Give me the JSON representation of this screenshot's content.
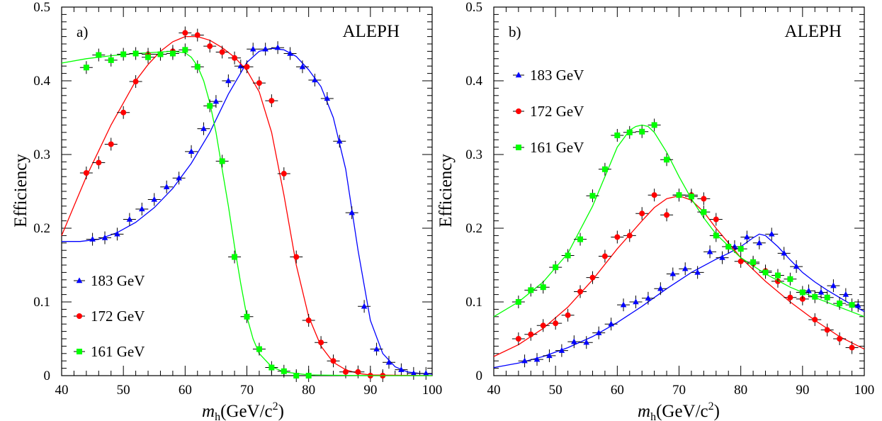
{
  "chart_data": [
    {
      "type": "scatter",
      "panel_label": "a)",
      "experiment": "ALEPH",
      "xlabel_main": "m",
      "xlabel_sub": "h",
      "xlabel_unit": "(GeV/c",
      "xlabel_sup": "2",
      "xlabel_close": ")",
      "ylabel": "Efficiency",
      "xlim": [
        40,
        100
      ],
      "ylim": [
        0,
        0.5
      ],
      "xticks": [
        "40",
        "50",
        "60",
        "70",
        "80",
        "90",
        "100"
      ],
      "yticks": [
        "0",
        "0.1",
        "0.2",
        "0.3",
        "0.4",
        "0.5"
      ],
      "legend_position": "bottom-left",
      "series": [
        {
          "name": "183 GeV",
          "color": "#0000ff",
          "marker": "triangle",
          "x": [
            45,
            47,
            49,
            51,
            53,
            55,
            57,
            59,
            61,
            63,
            65,
            67,
            69,
            71,
            73,
            75,
            77,
            79,
            81,
            83,
            85,
            87,
            89,
            91,
            93,
            95,
            97,
            99
          ],
          "y": [
            0.185,
            0.187,
            0.192,
            0.212,
            0.226,
            0.239,
            0.256,
            0.268,
            0.304,
            0.335,
            0.372,
            0.4,
            0.42,
            0.443,
            0.443,
            0.445,
            0.437,
            0.419,
            0.401,
            0.376,
            0.318,
            0.221,
            0.094,
            0.036,
            0.018,
            0.008,
            0.003,
            0.003
          ],
          "fit_x": [
            40,
            43,
            46,
            49,
            52,
            55,
            58,
            61,
            64,
            67,
            70,
            72,
            74,
            76,
            78,
            80,
            82,
            84,
            86,
            88,
            90,
            92,
            94,
            96,
            98,
            100
          ],
          "fit_y": [
            0.182,
            0.182,
            0.185,
            0.194,
            0.208,
            0.228,
            0.254,
            0.288,
            0.33,
            0.382,
            0.425,
            0.44,
            0.444,
            0.442,
            0.433,
            0.415,
            0.392,
            0.35,
            0.28,
            0.17,
            0.075,
            0.03,
            0.012,
            0.005,
            0.003,
            0.002
          ]
        },
        {
          "name": "172 GeV",
          "color": "#ff0000",
          "marker": "circle",
          "x": [
            44,
            46,
            48,
            50,
            52,
            54,
            56,
            58,
            60,
            62,
            64,
            66,
            68,
            70,
            72,
            74,
            76,
            78,
            80,
            82,
            84,
            86,
            88,
            90,
            92
          ],
          "y": [
            0.275,
            0.289,
            0.314,
            0.357,
            0.399,
            0.436,
            0.436,
            0.44,
            0.465,
            0.462,
            0.447,
            0.439,
            0.431,
            0.419,
            0.397,
            0.373,
            0.274,
            0.161,
            0.075,
            0.045,
            0.02,
            0.005,
            0.005,
            0.0,
            0.0
          ],
          "fit_x": [
            40,
            42,
            44,
            46,
            48,
            50,
            52,
            54,
            56,
            58,
            60,
            62,
            64,
            66,
            68,
            70,
            72,
            74,
            76,
            78,
            80,
            82,
            84,
            86,
            88,
            90,
            100
          ],
          "fit_y": [
            0.19,
            0.23,
            0.27,
            0.305,
            0.34,
            0.37,
            0.4,
            0.422,
            0.44,
            0.453,
            0.46,
            0.46,
            0.455,
            0.445,
            0.432,
            0.414,
            0.385,
            0.33,
            0.245,
            0.15,
            0.08,
            0.04,
            0.018,
            0.008,
            0.003,
            0.001,
            0.0
          ]
        },
        {
          "name": "161 GeV",
          "color": "#00ff00",
          "marker": "square",
          "x": [
            44,
            46,
            48,
            50,
            52,
            54,
            56,
            58,
            60,
            62,
            64,
            66,
            68,
            70,
            72,
            74,
            76,
            78,
            80
          ],
          "y": [
            0.418,
            0.435,
            0.428,
            0.436,
            0.437,
            0.432,
            0.436,
            0.437,
            0.442,
            0.419,
            0.366,
            0.291,
            0.161,
            0.08,
            0.036,
            0.011,
            0.006,
            0.0,
            0.0
          ],
          "fit_x": [
            40,
            44,
            48,
            52,
            56,
            58,
            60,
            61,
            62,
            63,
            64,
            65,
            66,
            67,
            68,
            69,
            70,
            71,
            72,
            74,
            76,
            80,
            90,
            100
          ],
          "fit_y": [
            0.424,
            0.43,
            0.434,
            0.437,
            0.439,
            0.44,
            0.438,
            0.432,
            0.42,
            0.4,
            0.37,
            0.33,
            0.28,
            0.23,
            0.175,
            0.125,
            0.08,
            0.05,
            0.03,
            0.012,
            0.005,
            0.001,
            0.0,
            0.0
          ]
        }
      ]
    },
    {
      "type": "scatter",
      "panel_label": "b)",
      "experiment": "ALEPH",
      "xlabel_main": "m",
      "xlabel_sub": "h",
      "xlabel_unit": "(GeV/c",
      "xlabel_sup": "2",
      "xlabel_close": ")",
      "ylabel": "Efficiency",
      "xlim": [
        40,
        100
      ],
      "ylim": [
        0,
        0.5
      ],
      "xticks": [
        "40",
        "50",
        "60",
        "70",
        "80",
        "90",
        "100"
      ],
      "yticks": [
        "0",
        "0.1",
        "0.2",
        "0.3",
        "0.4",
        "0.5"
      ],
      "legend_position": "top-right",
      "series": [
        {
          "name": "183 GeV",
          "color": "#0000ff",
          "marker": "triangle",
          "x": [
            45,
            47,
            49,
            51,
            53,
            55,
            57,
            59,
            61,
            63,
            65,
            67,
            69,
            71,
            73,
            75,
            77,
            79,
            81,
            83,
            85,
            87,
            89,
            91,
            93,
            95,
            97,
            99
          ],
          "y": [
            0.02,
            0.022,
            0.027,
            0.034,
            0.046,
            0.045,
            0.058,
            0.07,
            0.096,
            0.1,
            0.105,
            0.118,
            0.138,
            0.145,
            0.14,
            0.168,
            0.16,
            0.175,
            0.188,
            0.18,
            0.192,
            0.166,
            0.148,
            0.115,
            0.113,
            0.122,
            0.11,
            0.095
          ],
          "fit_x": [
            40,
            44,
            48,
            52,
            56,
            60,
            64,
            68,
            72,
            76,
            78,
            80,
            82,
            83,
            84,
            86,
            88,
            90,
            92,
            94,
            96,
            98,
            100
          ],
          "fit_y": [
            0.011,
            0.017,
            0.026,
            0.038,
            0.053,
            0.072,
            0.094,
            0.118,
            0.14,
            0.158,
            0.166,
            0.175,
            0.187,
            0.192,
            0.19,
            0.175,
            0.157,
            0.14,
            0.127,
            0.116,
            0.106,
            0.096,
            0.087
          ]
        },
        {
          "name": "172 GeV",
          "color": "#ff0000",
          "marker": "circle",
          "x": [
            44,
            46,
            48,
            50,
            52,
            54,
            56,
            58,
            60,
            62,
            64,
            66,
            68,
            70,
            72,
            74,
            76,
            78,
            80,
            82,
            84,
            86,
            88,
            90,
            92,
            94,
            96,
            98
          ],
          "y": [
            0.05,
            0.056,
            0.068,
            0.071,
            0.082,
            0.114,
            0.133,
            0.162,
            0.188,
            0.19,
            0.22,
            0.245,
            0.218,
            0.245,
            0.245,
            0.24,
            0.212,
            0.175,
            0.155,
            0.152,
            0.142,
            0.128,
            0.106,
            0.104,
            0.076,
            0.062,
            0.05,
            0.038
          ],
          "fit_x": [
            40,
            44,
            48,
            52,
            56,
            60,
            64,
            66,
            68,
            70,
            72,
            74,
            76,
            80,
            84,
            88,
            92,
            96,
            100
          ],
          "fit_y": [
            0.026,
            0.042,
            0.064,
            0.093,
            0.13,
            0.172,
            0.21,
            0.228,
            0.24,
            0.244,
            0.238,
            0.222,
            0.2,
            0.16,
            0.128,
            0.1,
            0.075,
            0.053,
            0.036
          ]
        },
        {
          "name": "161 GeV",
          "color": "#00ff00",
          "marker": "square",
          "x": [
            44,
            46,
            48,
            50,
            52,
            54,
            56,
            58,
            60,
            62,
            64,
            66,
            68,
            70,
            72,
            74,
            76,
            78,
            80,
            82,
            84,
            86,
            88,
            90,
            92,
            94,
            96,
            98
          ],
          "y": [
            0.1,
            0.116,
            0.12,
            0.147,
            0.163,
            0.185,
            0.244,
            0.28,
            0.326,
            0.33,
            0.331,
            0.34,
            0.293,
            0.245,
            0.243,
            0.222,
            0.19,
            0.175,
            0.172,
            0.154,
            0.14,
            0.136,
            0.131,
            0.113,
            0.107,
            0.106,
            0.098,
            0.096
          ],
          "fit_x": [
            40,
            44,
            48,
            52,
            56,
            58,
            60,
            62,
            63,
            64,
            65,
            66,
            68,
            70,
            72,
            74,
            76,
            80,
            84,
            88,
            92,
            96,
            100
          ],
          "fit_y": [
            0.08,
            0.1,
            0.127,
            0.166,
            0.23,
            0.27,
            0.31,
            0.333,
            0.338,
            0.34,
            0.338,
            0.33,
            0.303,
            0.27,
            0.24,
            0.214,
            0.192,
            0.16,
            0.138,
            0.12,
            0.106,
            0.093,
            0.08
          ]
        }
      ]
    }
  ]
}
